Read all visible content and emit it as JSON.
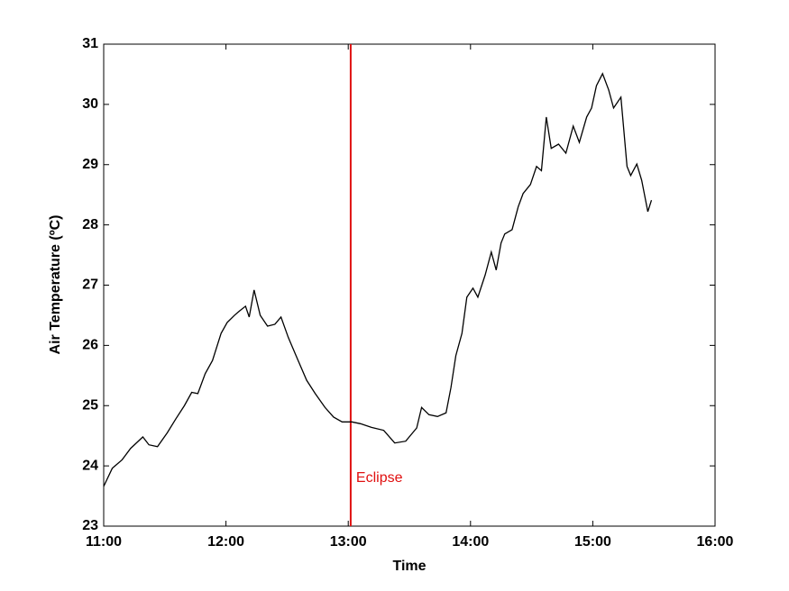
{
  "chart_data": {
    "type": "line",
    "x_label": "Time",
    "y_label": "Air Temperature (ºC)",
    "x": [
      11.0,
      11.07,
      11.15,
      11.22,
      11.32,
      11.37,
      11.44,
      11.52,
      11.59,
      11.66,
      11.72,
      11.77,
      11.83,
      11.89,
      11.96,
      12.01,
      12.07,
      12.11,
      12.16,
      12.19,
      12.23,
      12.28,
      12.34,
      12.4,
      12.45,
      12.51,
      12.59,
      12.66,
      12.73,
      12.81,
      12.88,
      12.95,
      13.03,
      13.1,
      13.19,
      13.29,
      13.38,
      13.47,
      13.56,
      13.6,
      13.66,
      13.73,
      13.8,
      13.84,
      13.88,
      13.93,
      13.97,
      14.02,
      14.06,
      14.12,
      14.17,
      14.21,
      14.25,
      14.28,
      14.34,
      14.39,
      14.43,
      14.49,
      14.54,
      14.58,
      14.62,
      14.66,
      14.72,
      14.78,
      14.84,
      14.89,
      14.95,
      14.99,
      15.03,
      15.08,
      15.13,
      15.17,
      15.23,
      15.28,
      15.31,
      15.36,
      15.4,
      15.45,
      15.48
    ],
    "series": [
      {
        "color": "#000000",
        "values": [
          23.66,
          23.96,
          24.1,
          24.29,
          24.48,
          24.35,
          24.32,
          24.55,
          24.78,
          25.0,
          25.22,
          25.2,
          25.53,
          25.75,
          26.2,
          26.38,
          26.5,
          26.57,
          26.65,
          26.47,
          26.92,
          26.5,
          26.32,
          26.35,
          26.47,
          26.13,
          25.75,
          25.42,
          25.2,
          24.97,
          24.81,
          24.73,
          24.73,
          24.7,
          24.64,
          24.59,
          24.38,
          24.41,
          24.63,
          24.97,
          24.85,
          24.82,
          24.88,
          25.3,
          25.83,
          26.2,
          26.8,
          26.95,
          26.8,
          27.17,
          27.55,
          27.25,
          27.7,
          27.85,
          27.92,
          28.3,
          28.52,
          28.67,
          28.97,
          28.9,
          29.79,
          29.27,
          29.34,
          29.19,
          29.64,
          29.37,
          29.79,
          29.94,
          30.31,
          30.51,
          30.24,
          29.94,
          30.12,
          28.97,
          28.82,
          29.01,
          28.74,
          28.22,
          28.41
        ]
      }
    ],
    "xlim": [
      11,
      16
    ],
    "xticks": [
      {
        "value": 11,
        "label": "11:00"
      },
      {
        "value": 12,
        "label": "12:00"
      },
      {
        "value": 13,
        "label": "13:00"
      },
      {
        "value": 14,
        "label": "14:00"
      },
      {
        "value": 15,
        "label": "15:00"
      },
      {
        "value": 16,
        "label": "16:00"
      }
    ],
    "ylim": [
      23,
      31
    ],
    "yticks": [
      23,
      24,
      25,
      26,
      27,
      28,
      29,
      30,
      31
    ],
    "annotations": [
      {
        "text": "Eclipse",
        "x": 13.02,
        "color": "#e01010"
      }
    ]
  }
}
